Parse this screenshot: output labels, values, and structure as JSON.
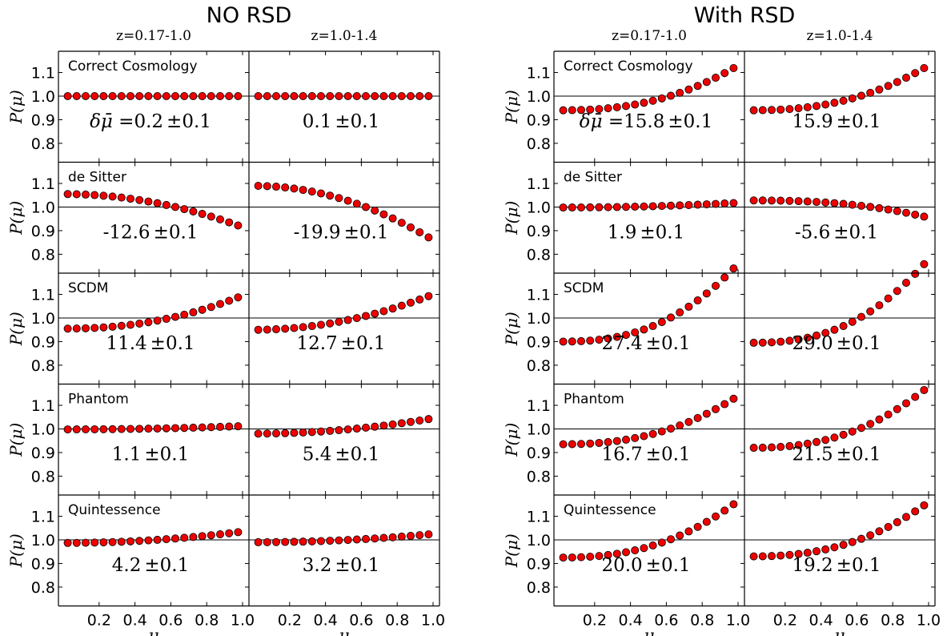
{
  "figure": {
    "groups": [
      {
        "title": "NO RSD",
        "columns": [
          "z=0.17-1.0",
          "z=1.0-1.4"
        ]
      },
      {
        "title": "With RSD",
        "columns": [
          "z=0.17-1.0",
          "z=1.0-1.4"
        ]
      }
    ],
    "ylabel": "P(μ)",
    "xlabel": "μ",
    "delta_prefix": "δμ̄ =",
    "pm": "±",
    "xticks": [
      "0.2",
      "0.4",
      "0.6",
      "0.8",
      "1.0"
    ],
    "yticks": [
      "0.8",
      "0.9",
      "1.0",
      "1.1"
    ]
  },
  "chart_data": {
    "type": "scatter",
    "x_range": [
      0,
      1
    ],
    "y_range": [
      0.72,
      1.19
    ],
    "n_points": 20,
    "reference_line": 1.0,
    "marker_color": "#ee0000",
    "rows": [
      "Correct Cosmology",
      "de Sitter",
      "SCDM",
      "Phantom",
      "Quintessence"
    ],
    "panels": [
      {
        "group": "NO RSD",
        "column": "z=0.17-1.0",
        "row": "Correct Cosmology",
        "delta": "0.2",
        "err": "0.1",
        "y0": 1.0,
        "y_end": 1.0,
        "shape": 1.0
      },
      {
        "group": "NO RSD",
        "column": "z=1.0-1.4",
        "row": "Correct Cosmology",
        "delta": "0.1",
        "err": "0.1",
        "y0": 1.0,
        "y_end": 1.0,
        "shape": 1.0
      },
      {
        "group": "NO RSD",
        "column": "z=0.17-1.0",
        "row": "de Sitter",
        "delta": "-12.6",
        "err": "0.1",
        "y0": 1.055,
        "y_end": 0.915,
        "shape": 2.0
      },
      {
        "group": "NO RSD",
        "column": "z=1.0-1.4",
        "row": "de Sitter",
        "delta": "-19.9",
        "err": "0.1",
        "y0": 1.09,
        "y_end": 0.86,
        "shape": 2.0
      },
      {
        "group": "NO RSD",
        "column": "z=0.17-1.0",
        "row": "SCDM",
        "delta": "11.4",
        "err": "0.1",
        "y0": 0.955,
        "y_end": 1.095,
        "shape": 2.2
      },
      {
        "group": "NO RSD",
        "column": "z=1.0-1.4",
        "row": "SCDM",
        "delta": "12.7",
        "err": "0.1",
        "y0": 0.95,
        "y_end": 1.1,
        "shape": 2.0
      },
      {
        "group": "NO RSD",
        "column": "z=0.17-1.0",
        "row": "Phantom",
        "delta": "1.1",
        "err": "0.1",
        "y0": 0.998,
        "y_end": 1.012,
        "shape": 2.0
      },
      {
        "group": "NO RSD",
        "column": "z=1.0-1.4",
        "row": "Phantom",
        "delta": "5.4",
        "err": "0.1",
        "y0": 0.98,
        "y_end": 1.045,
        "shape": 2.0
      },
      {
        "group": "NO RSD",
        "column": "z=0.17-1.0",
        "row": "Quintessence",
        "delta": "4.2",
        "err": "0.1",
        "y0": 0.987,
        "y_end": 1.035,
        "shape": 2.0
      },
      {
        "group": "NO RSD",
        "column": "z=1.0-1.4",
        "row": "Quintessence",
        "delta": "3.2",
        "err": "0.1",
        "y0": 0.99,
        "y_end": 1.025,
        "shape": 2.0
      },
      {
        "group": "With RSD",
        "column": "z=0.17-1.0",
        "row": "Correct Cosmology",
        "delta": "15.8",
        "err": "0.1",
        "y0": 0.94,
        "y_end": 1.13,
        "shape": 2.4
      },
      {
        "group": "With RSD",
        "column": "z=1.0-1.4",
        "row": "Correct Cosmology",
        "delta": "15.9",
        "err": "0.1",
        "y0": 0.94,
        "y_end": 1.13,
        "shape": 2.4
      },
      {
        "group": "With RSD",
        "column": "z=0.17-1.0",
        "row": "de Sitter",
        "delta": "1.9",
        "err": "0.1",
        "y0": 0.998,
        "y_end": 1.018,
        "shape": 2.0
      },
      {
        "group": "With RSD",
        "column": "z=1.0-1.4",
        "row": "de Sitter",
        "delta": "-5.6",
        "err": "0.1",
        "y0": 1.028,
        "y_end": 0.955,
        "shape": 2.5
      },
      {
        "group": "With RSD",
        "column": "z=0.17-1.0",
        "row": "SCDM",
        "delta": "27.4",
        "err": "0.1",
        "y0": 0.9,
        "y_end": 1.23,
        "shape": 2.5
      },
      {
        "group": "With RSD",
        "column": "z=1.0-1.4",
        "row": "SCDM",
        "delta": "29.0",
        "err": "0.1",
        "y0": 0.895,
        "y_end": 1.25,
        "shape": 2.5
      },
      {
        "group": "With RSD",
        "column": "z=0.17-1.0",
        "row": "Phantom",
        "delta": "16.7",
        "err": "0.1",
        "y0": 0.935,
        "y_end": 1.14,
        "shape": 2.4
      },
      {
        "group": "With RSD",
        "column": "z=1.0-1.4",
        "row": "Phantom",
        "delta": "21.5",
        "err": "0.1",
        "y0": 0.92,
        "y_end": 1.18,
        "shape": 2.4
      },
      {
        "group": "With RSD",
        "column": "z=0.17-1.0",
        "row": "Quintessence",
        "delta": "20.0",
        "err": "0.1",
        "y0": 0.925,
        "y_end": 1.165,
        "shape": 2.4
      },
      {
        "group": "With RSD",
        "column": "z=1.0-1.4",
        "row": "Quintessence",
        "delta": "19.2",
        "err": "0.1",
        "y0": 0.93,
        "y_end": 1.16,
        "shape": 2.4
      }
    ]
  }
}
